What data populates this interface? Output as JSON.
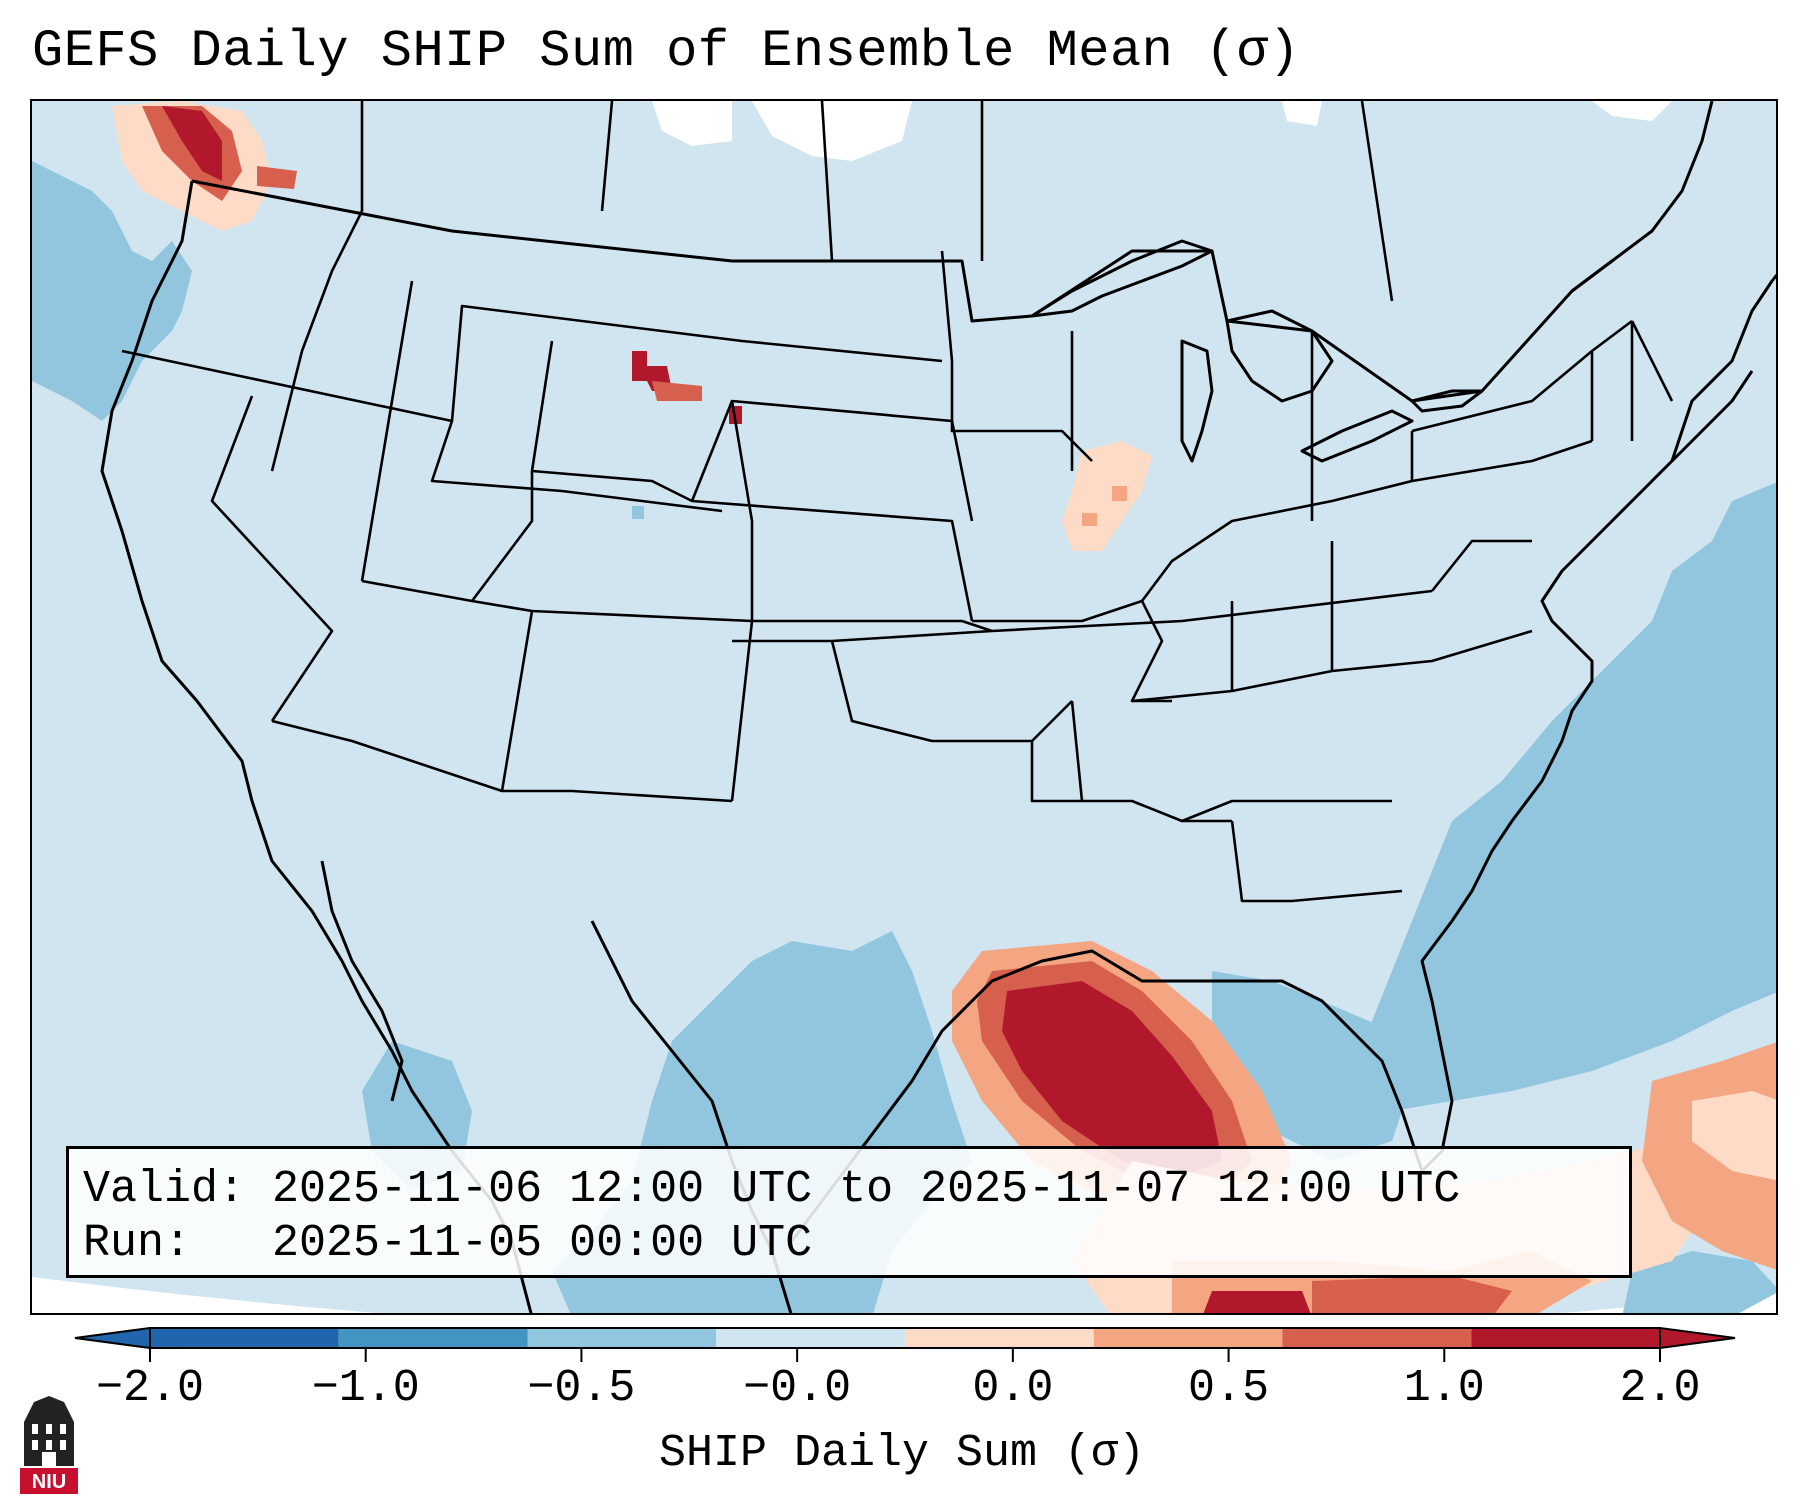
{
  "title": "GEFS Daily SHIP Sum of Ensemble Mean (σ)",
  "map": {
    "projection": "Lambert conformal over the contiguous United States",
    "background_level_color": "#d1e5f0",
    "colors": {
      "lt_neg_2": "#2166ac",
      "neg_2_to_neg_1": "#4393c3",
      "neg_1_to_neg_05": "#92c5de",
      "neg_05_to_0": "#d1e5f0",
      "zero_to_05": "#fddbc7",
      "05_to_1": "#f4a582",
      "1_to_2": "#d6604d",
      "gt_2": "#b2182b",
      "no_data": "#ffffff"
    },
    "regions": [
      {
        "name": "Atlantic offshore",
        "level": "-1.0 to -0.5"
      },
      {
        "name": "Pacific offshore Washington",
        "level": "-1.0 to -0.5"
      },
      {
        "name": "Gulf coast Texas to Louisiana",
        "level": "above 2.0"
      },
      {
        "name": "Western Washington",
        "level": "above 2.0"
      },
      {
        "name": "Eastern Wyoming / western South Dakota",
        "level": "above 2.0"
      },
      {
        "name": "Illinois",
        "level": "0.0 to 0.5"
      },
      {
        "name": "Northern Caribbean",
        "level": "0.5 to 2.0"
      }
    ]
  },
  "info": {
    "valid_line": "Valid: 2025-11-06 12:00 UTC to 2025-11-07 12:00 UTC",
    "run_line": "Run:   2025-11-05 00:00 UTC"
  },
  "colorbar": {
    "label": "SHIP Daily Sum (σ)",
    "ticks": [
      "−2.0",
      "−1.0",
      "−0.5",
      "−0.0",
      "0.0",
      "0.5",
      "1.0",
      "2.0"
    ],
    "segment_colors": [
      "#2166ac",
      "#4393c3",
      "#92c5de",
      "#d1e5f0",
      "#fddbc7",
      "#f4a582",
      "#d6604d",
      "#b2182b"
    ],
    "extend": "both"
  },
  "logo": {
    "text": "NIU"
  }
}
